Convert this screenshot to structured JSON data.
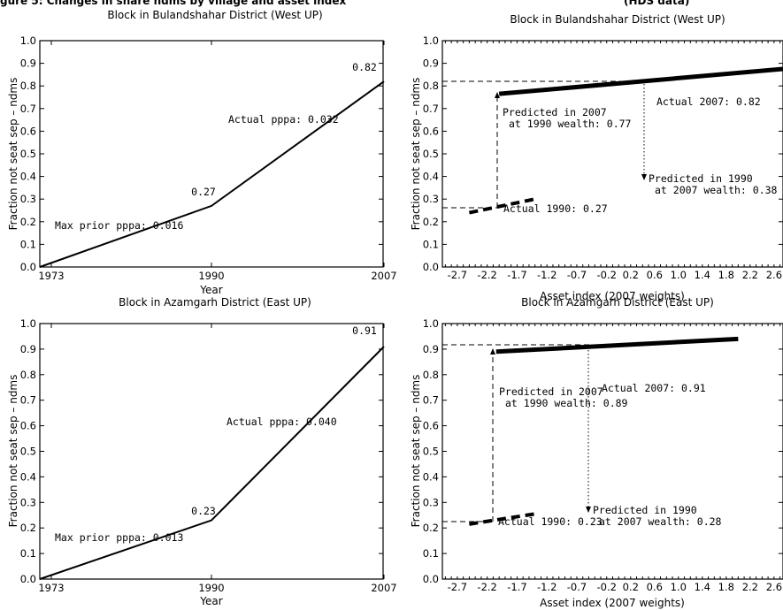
{
  "figure": {
    "header_left": "gure 5: Changes in share ndms by village and asset index",
    "header_right": "(HDS data)"
  },
  "chart_data": [
    {
      "type": "line",
      "title": "Block in Bulandshahar District (West UP)",
      "xlabel": "Year",
      "ylabel": "Fraction not seat sep – ndms",
      "categories": [
        "1973",
        "1990",
        "2007"
      ],
      "series": [
        {
          "values": [
            0.0,
            0.27,
            0.82
          ]
        }
      ],
      "ylim": [
        0,
        1.0
      ],
      "yticks": [
        "0.0",
        "0.1",
        "0.2",
        "0.3",
        "0.4",
        "0.5",
        "0.6",
        "0.7",
        "0.8",
        "0.9",
        "1.0"
      ],
      "data_labels": [
        "0.27",
        "0.82"
      ],
      "annotations": [
        "Max prior pppa: 0.016",
        "Actual pppa: 0.032"
      ],
      "grid": false
    },
    {
      "type": "line",
      "title": "Block in Bulandshahar District (West UP)",
      "xlabel": "Asset index (2007 weights)",
      "ylabel": "Fraction not seat sep – ndms",
      "xlim": [
        -2.95,
        2.75
      ],
      "ylim": [
        0,
        1.0
      ],
      "xticks": [
        "-2.7",
        "-2.2",
        "-1.7",
        "-1.2",
        "-0.7",
        "-0.2",
        "0.2",
        "0.6",
        "1.0",
        "1.4",
        "1.8",
        "2.2",
        "2.6"
      ],
      "yticks": [
        "0.0",
        "0.1",
        "0.2",
        "0.3",
        "0.4",
        "0.5",
        "0.6",
        "0.7",
        "0.8",
        "0.9",
        "1.0"
      ],
      "series": [
        {
          "x": [
            -2.0,
            2.75
          ],
          "y": [
            0.765,
            0.875
          ]
        },
        {
          "x": [
            -2.5,
            -1.4
          ],
          "y": [
            0.24,
            0.3
          ]
        }
      ],
      "points": {
        "actual_1990": [
          -1.95,
          0.27
        ],
        "actual_2007": [
          0.3,
          0.82
        ]
      },
      "annotations": [
        "Predicted in 2007\nat 1990 wealth: 0.77",
        "Actual 2007: 0.82",
        "Predicted in 1990\nat 2007 wealth: 0.38",
        "Actual 1990: 0.27"
      ],
      "grid": false
    },
    {
      "type": "line",
      "title": "Block in Azamgarh District (East UP)",
      "xlabel": "Year",
      "ylabel": "Fraction not seat sep – ndms",
      "categories": [
        "1973",
        "1990",
        "2007"
      ],
      "series": [
        {
          "values": [
            0.0,
            0.23,
            0.91
          ]
        }
      ],
      "ylim": [
        0,
        1.0
      ],
      "yticks": [
        "0.0",
        "0.1",
        "0.2",
        "0.3",
        "0.4",
        "0.5",
        "0.6",
        "0.7",
        "0.8",
        "0.9",
        "1.0"
      ],
      "data_labels": [
        "0.23",
        "0.91"
      ],
      "annotations": [
        "Max prior pppa: 0.013",
        "Actual pppa: 0.040"
      ],
      "grid": false
    },
    {
      "type": "line",
      "title": "Block in Azamgarh District (East UP)",
      "xlabel": "Asset index (2007 weights)",
      "ylabel": "Fraction not seat sep – ndms",
      "xlim": [
        -2.95,
        2.75
      ],
      "ylim": [
        0,
        1.0
      ],
      "xticks": [
        "-2.7",
        "-2.2",
        "-1.7",
        "-1.2",
        "-0.7",
        "-0.2",
        "0.2",
        "0.6",
        "1.0",
        "1.4",
        "1.8",
        "2.2",
        "2.6"
      ],
      "yticks": [
        "0.0",
        "0.1",
        "0.2",
        "0.3",
        "0.4",
        "0.5",
        "0.6",
        "0.7",
        "0.8",
        "0.9",
        "1.0"
      ],
      "series": [
        {
          "x": [
            -2.05,
            2.0
          ],
          "y": [
            0.89,
            0.94
          ]
        },
        {
          "x": [
            -2.5,
            -1.4
          ],
          "y": [
            0.215,
            0.255
          ]
        }
      ],
      "points": {
        "actual_1990": [
          -2.1,
          0.23
        ],
        "actual_2007": [
          -0.6,
          0.91
        ]
      },
      "annotations": [
        "Predicted in 2007\nat 1990 wealth: 0.89",
        "Actual 2007: 0.91",
        "Predicted in 1990\nat 2007 wealth: 0.28",
        "Actual 1990: 0.23"
      ],
      "grid": false
    }
  ]
}
